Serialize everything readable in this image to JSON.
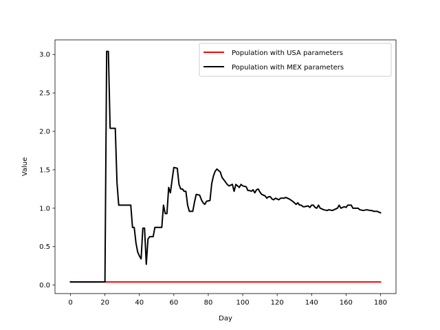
{
  "chart_data": {
    "type": "line",
    "title": "",
    "xlabel": "Day",
    "ylabel": "Value",
    "xlim": [
      -9,
      189
    ],
    "ylim": [
      -0.1105,
      3.19
    ],
    "x_ticks": [
      0,
      20,
      40,
      60,
      80,
      100,
      120,
      140,
      160,
      180
    ],
    "y_ticks": [
      0.0,
      0.5,
      1.0,
      1.5,
      2.0,
      2.5,
      3.0
    ],
    "y_tick_labels": [
      "0.0",
      "0.5",
      "1.0",
      "1.5",
      "2.0",
      "2.5",
      "3.0"
    ],
    "grid": false,
    "legend_position": "upper right",
    "series": [
      {
        "name": "Population with USA parameters",
        "color": "#ff0000",
        "points": [
          [
            0,
            0.04
          ],
          [
            180,
            0.04
          ]
        ]
      },
      {
        "name": "Population with MEX parameters",
        "color": "#000000",
        "points": [
          [
            0,
            0.04
          ],
          [
            20,
            0.04
          ],
          [
            21,
            3.04
          ],
          [
            22,
            3.04
          ],
          [
            23,
            2.04
          ],
          [
            26,
            2.04
          ],
          [
            27,
            1.33
          ],
          [
            28,
            1.04
          ],
          [
            35,
            1.04
          ],
          [
            36,
            0.75
          ],
          [
            37,
            0.75
          ],
          [
            38,
            0.55
          ],
          [
            39,
            0.43
          ],
          [
            40,
            0.38
          ],
          [
            41,
            0.34
          ],
          [
            42,
            0.74
          ],
          [
            43,
            0.74
          ],
          [
            44,
            0.27
          ],
          [
            45,
            0.6
          ],
          [
            46,
            0.63
          ],
          [
            48,
            0.63
          ],
          [
            49,
            0.75
          ],
          [
            53,
            0.75
          ],
          [
            54,
            1.04
          ],
          [
            55,
            0.93
          ],
          [
            56,
            0.93
          ],
          [
            57,
            1.27
          ],
          [
            58,
            1.2
          ],
          [
            59,
            1.37
          ],
          [
            60,
            1.53
          ],
          [
            62,
            1.52
          ],
          [
            63,
            1.31
          ],
          [
            64,
            1.25
          ],
          [
            65,
            1.25
          ],
          [
            66,
            1.22
          ],
          [
            67,
            1.22
          ],
          [
            68,
            1.04
          ],
          [
            69,
            0.96
          ],
          [
            71,
            0.96
          ],
          [
            72,
            1.08
          ],
          [
            73,
            1.18
          ],
          [
            75,
            1.17
          ],
          [
            76,
            1.11
          ],
          [
            77,
            1.07
          ],
          [
            78,
            1.05
          ],
          [
            79,
            1.09
          ],
          [
            81,
            1.1
          ],
          [
            82,
            1.32
          ],
          [
            83,
            1.42
          ],
          [
            84,
            1.48
          ],
          [
            85,
            1.51
          ],
          [
            87,
            1.47
          ],
          [
            88,
            1.4
          ],
          [
            90,
            1.34
          ],
          [
            91,
            1.31
          ],
          [
            92,
            1.29
          ],
          [
            94,
            1.31
          ],
          [
            95,
            1.22
          ],
          [
            96,
            1.31
          ],
          [
            97,
            1.29
          ],
          [
            98,
            1.27
          ],
          [
            99,
            1.31
          ],
          [
            100,
            1.29
          ],
          [
            102,
            1.28
          ],
          [
            103,
            1.23
          ],
          [
            104,
            1.23
          ],
          [
            105,
            1.22
          ],
          [
            106,
            1.24
          ],
          [
            107,
            1.2
          ],
          [
            108,
            1.24
          ],
          [
            109,
            1.25
          ],
          [
            110,
            1.21
          ],
          [
            111,
            1.18
          ],
          [
            113,
            1.16
          ],
          [
            114,
            1.13
          ],
          [
            115,
            1.15
          ],
          [
            116,
            1.15
          ],
          [
            117,
            1.12
          ],
          [
            118,
            1.11
          ],
          [
            119,
            1.13
          ],
          [
            120,
            1.12
          ],
          [
            121,
            1.11
          ],
          [
            122,
            1.13
          ],
          [
            124,
            1.13
          ],
          [
            125,
            1.14
          ],
          [
            127,
            1.12
          ],
          [
            129,
            1.09
          ],
          [
            130,
            1.07
          ],
          [
            131,
            1.05
          ],
          [
            132,
            1.07
          ],
          [
            133,
            1.04
          ],
          [
            134,
            1.04
          ],
          [
            135,
            1.02
          ],
          [
            136,
            1.02
          ],
          [
            138,
            1.03
          ],
          [
            139,
            1.01
          ],
          [
            140,
            1.04
          ],
          [
            141,
            1.04
          ],
          [
            142,
            1.01
          ],
          [
            143,
            1.0
          ],
          [
            144,
            1.04
          ],
          [
            145,
            1.0
          ],
          [
            146,
            0.99
          ],
          [
            147,
            0.98
          ],
          [
            149,
            0.97
          ],
          [
            150,
            0.98
          ],
          [
            152,
            0.97
          ],
          [
            154,
            0.99
          ],
          [
            155,
            1.0
          ],
          [
            156,
            1.04
          ],
          [
            157,
            1.0
          ],
          [
            159,
            1.02
          ],
          [
            160,
            1.01
          ],
          [
            161,
            1.04
          ],
          [
            163,
            1.04
          ],
          [
            164,
            1.0
          ],
          [
            167,
            1.0
          ],
          [
            168,
            0.98
          ],
          [
            170,
            0.97
          ],
          [
            172,
            0.98
          ],
          [
            174,
            0.97
          ],
          [
            175,
            0.97
          ],
          [
            176,
            0.96
          ],
          [
            178,
            0.96
          ],
          [
            179,
            0.95
          ],
          [
            180,
            0.94
          ]
        ]
      }
    ]
  }
}
